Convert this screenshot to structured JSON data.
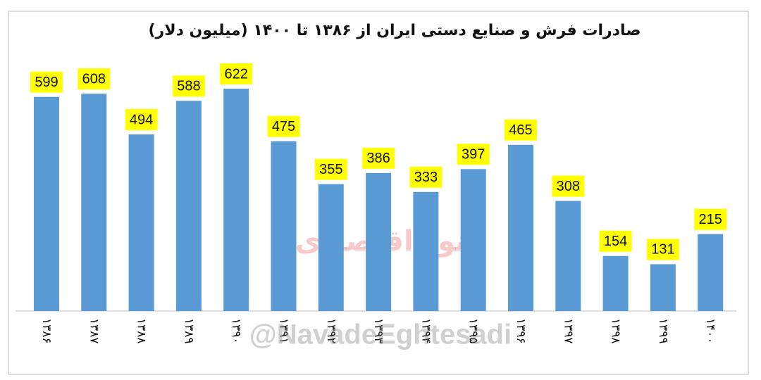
{
  "chart_data": {
    "type": "bar",
    "title": "صادرات فرش و صنایع دستی ایران از ۱۳۸۶ تا ۱۴۰۰ (میلیون دلار)",
    "categories": [
      "۱۳۸۶",
      "۱۳۸۷",
      "۱۳۸۸",
      "۱۳۸۹",
      "۱۳۹۰",
      "۱۳۹۱",
      "۱۳۹۲",
      "۱۳۹۳",
      "۱۳۹۴",
      "۱۳۹۵",
      "۱۳۹۶",
      "۱۳۹۷",
      "۱۳۹۸",
      "۱۳۹۹",
      "۱۴۰۰"
    ],
    "values": [
      599,
      608,
      494,
      588,
      622,
      475,
      355,
      386,
      333,
      397,
      465,
      308,
      154,
      131,
      215
    ],
    "color": "#5b9bd5",
    "label_background": "#ffff00",
    "watermarks": [
      "نود اقتصادی",
      "@NavadeEghtesadi"
    ]
  }
}
